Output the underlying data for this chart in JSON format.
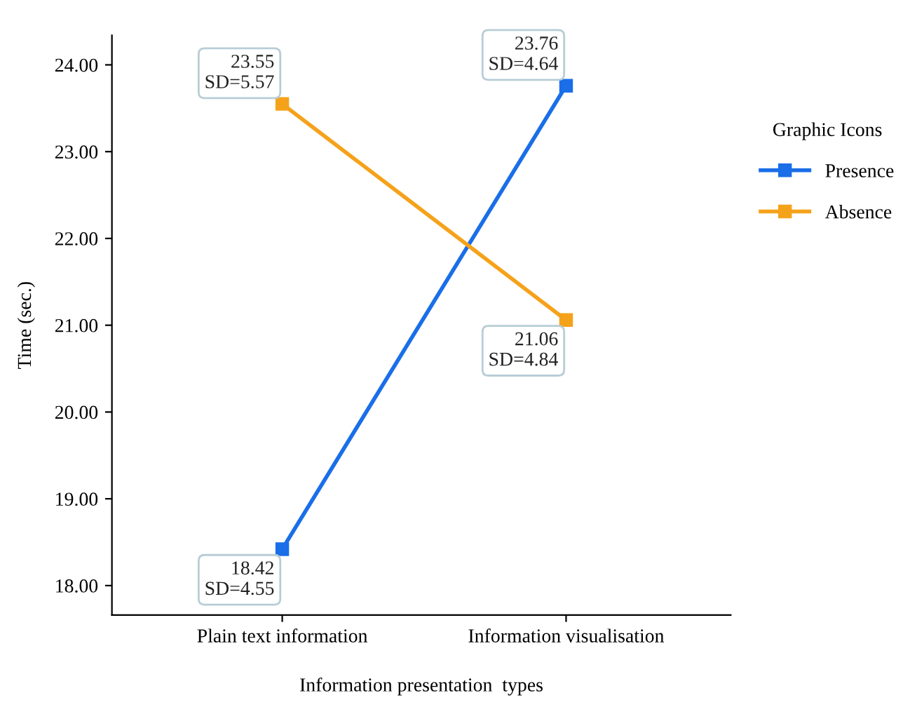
{
  "chart_data": {
    "type": "line",
    "xlabel": "Information presentation  types",
    "ylabel": "Time (sec.)",
    "legend_title": "Graphic Icons",
    "categories": [
      "Plain text information",
      "Information visualisation"
    ],
    "series": [
      {
        "name": "Presence",
        "color": "#1a6ee8",
        "values": [
          18.42,
          23.76
        ],
        "value_labels": [
          "18.42\nSD=4.55",
          "23.76\nSD=4.64"
        ]
      },
      {
        "name": "Absence",
        "color": "#f5a21b",
        "values": [
          23.55,
          21.06
        ],
        "value_labels": [
          "23.55\nSD=5.57",
          "21.06\nSD=4.84"
        ]
      }
    ],
    "ylim": [
      17.66,
      24.34
    ],
    "yticks": [
      {
        "value": 18,
        "label": "18.00"
      },
      {
        "value": 19,
        "label": "19.00"
      },
      {
        "value": 20,
        "label": "20.00"
      },
      {
        "value": 21,
        "label": "21.00"
      },
      {
        "value": 22,
        "label": "22.00"
      },
      {
        "value": 23,
        "label": "23.00"
      },
      {
        "value": 24,
        "label": "24.00"
      }
    ],
    "grid": false,
    "legend": "right",
    "marker": "square",
    "line_style": "solid"
  }
}
